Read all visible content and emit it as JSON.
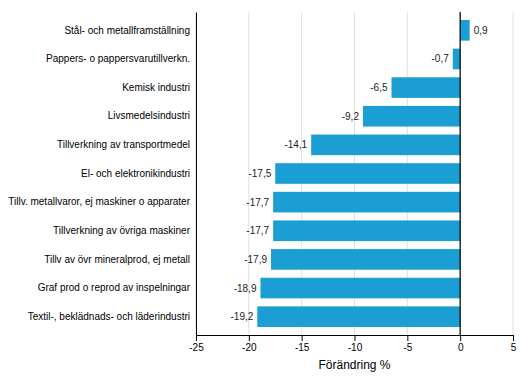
{
  "chart_data": {
    "type": "bar",
    "orientation": "horizontal",
    "categories": [
      "Textil-, beklädnads- och läderindustri",
      "Graf prod o reprod av inspelningar",
      "Tillv av övr mineralprod, ej metall",
      "Tillverkning av övriga maskiner",
      "Tillv. metallvaror, ej maskiner o apparater",
      "El- och elektronikindustri",
      "Tillverkning av transportmedel",
      "Livsmedelsindustri",
      "Kemisk industri",
      "Pappers- o pappersvarutillverkn.",
      "Stål- och metallframställning"
    ],
    "values": [
      -19.2,
      -18.9,
      -17.9,
      -17.7,
      -17.7,
      -17.5,
      -14.1,
      -9.2,
      -6.5,
      -0.7,
      0.9
    ],
    "value_labels": [
      "-19,2",
      "-18,9",
      "-17,9",
      "-17,7",
      "-17,7",
      "-17,5",
      "-14,1",
      "-9,2",
      "-6,5",
      "-0,7",
      "0,9"
    ],
    "data_labels": true,
    "color": "#1a9ed4",
    "xlabel": "Förändring %",
    "xlim": [
      -25,
      5
    ],
    "xticks": [
      -25,
      -20,
      -15,
      -10,
      -5,
      0,
      5
    ],
    "grid": true
  }
}
